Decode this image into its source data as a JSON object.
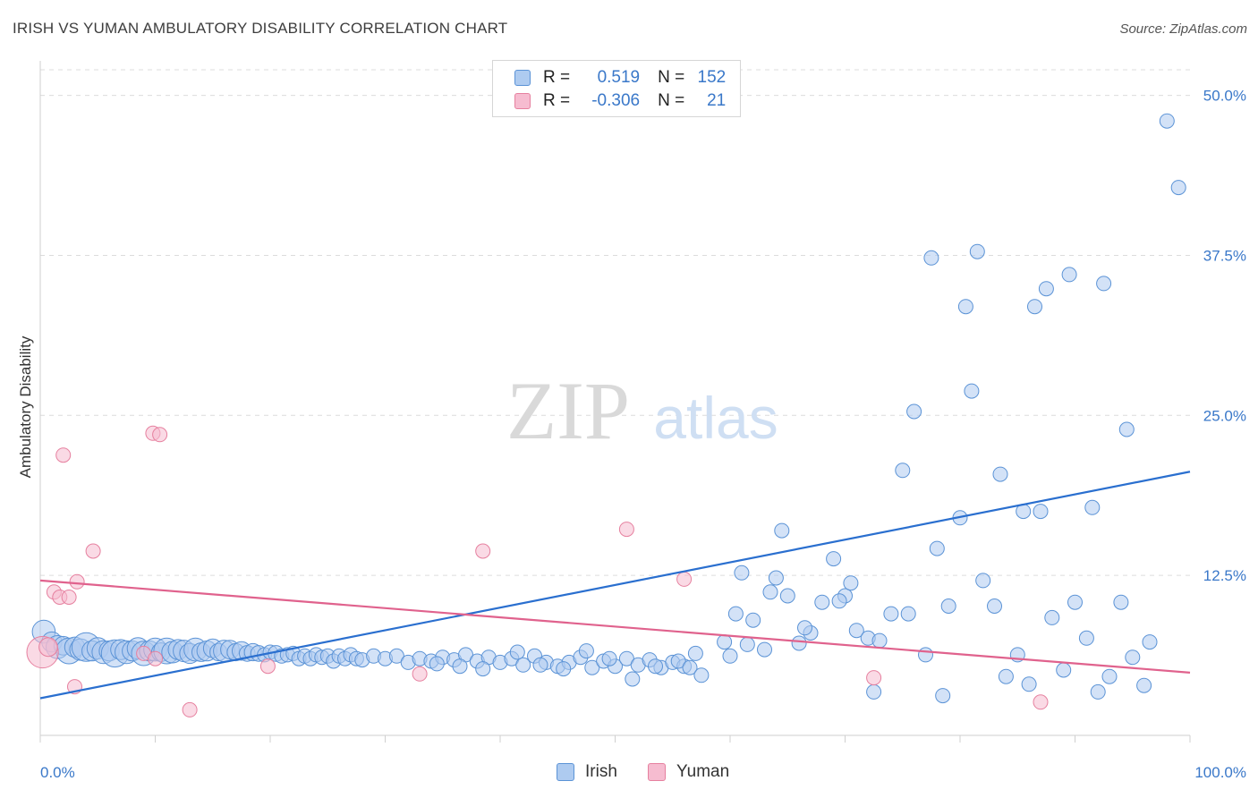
{
  "title": "IRISH VS YUMAN AMBULATORY DISABILITY CORRELATION CHART",
  "source": "Source: ZipAtlas.com",
  "watermark": {
    "zip": "ZIP",
    "atlas": "atlas"
  },
  "legend": {
    "irish": {
      "r_label": "R =",
      "r_value": "0.519",
      "n_label": "N =",
      "n_value": "152"
    },
    "yuman": {
      "r_label": "R =",
      "r_value": "-0.306",
      "n_label": "N =",
      "n_value": "21"
    }
  },
  "bottom_legend": {
    "irish": "Irish",
    "yuman": "Yuman"
  },
  "colors": {
    "irish_fill": "#aecbf0",
    "irish_stroke": "#5b93d6",
    "irish_line": "#2a6fcf",
    "yuman_fill": "#f6bcd0",
    "yuman_stroke": "#e6809f",
    "yuman_line": "#e0628d",
    "axis_label": "#3a78c9",
    "grid": "#dcdcdc"
  },
  "chart_data": {
    "type": "scatter",
    "title": "IRISH VS YUMAN AMBULATORY DISABILITY CORRELATION CHART",
    "xlabel": "",
    "ylabel": "Ambulatory Disability",
    "xlim": [
      0,
      100
    ],
    "ylim": [
      0,
      52
    ],
    "x_tick_labels": [
      "0.0%",
      "100.0%"
    ],
    "y_ticks": [
      12.5,
      25.0,
      37.5,
      50.0
    ],
    "y_tick_labels": [
      "12.5%",
      "25.0%",
      "37.5%",
      "50.0%"
    ],
    "series": [
      {
        "name": "Irish",
        "r": 0.519,
        "n": 152,
        "trend": {
          "x": [
            0,
            100
          ],
          "y": [
            2.9,
            20.6
          ]
        },
        "points": [
          [
            0.3,
            8.1,
            1.6
          ],
          [
            1,
            7.3,
            1.4
          ],
          [
            1.5,
            6.9,
            1.6
          ],
          [
            2,
            7.0,
            1.3
          ],
          [
            2.5,
            6.6,
            1.8
          ],
          [
            3,
            6.9,
            1.4
          ],
          [
            3.5,
            6.7,
            1.5
          ],
          [
            4,
            6.9,
            2.0
          ],
          [
            4.5,
            6.6,
            1.4
          ],
          [
            5,
            6.8,
            1.5
          ],
          [
            5.5,
            6.5,
            1.6
          ],
          [
            6,
            6.6,
            1.4
          ],
          [
            6.5,
            6.4,
            1.9
          ],
          [
            7,
            6.7,
            1.4
          ],
          [
            7.5,
            6.5,
            1.6
          ],
          [
            8,
            6.6,
            1.4
          ],
          [
            8.5,
            6.8,
            1.5
          ],
          [
            9,
            6.4,
            1.7
          ],
          [
            9.5,
            6.6,
            1.4
          ],
          [
            10,
            6.7,
            1.6
          ],
          [
            10.5,
            6.5,
            1.3
          ],
          [
            11,
            6.6,
            1.8
          ],
          [
            11.5,
            6.5,
            1.5
          ],
          [
            12,
            6.7,
            1.4
          ],
          [
            12.5,
            6.6,
            1.5
          ],
          [
            13,
            6.4,
            1.4
          ],
          [
            13.5,
            6.7,
            1.6
          ],
          [
            14,
            6.5,
            1.3
          ],
          [
            14.5,
            6.6,
            1.4
          ],
          [
            15,
            6.8,
            1.3
          ],
          [
            15.5,
            6.5,
            1.2
          ],
          [
            16,
            6.6,
            1.5
          ],
          [
            16.5,
            6.7,
            1.3
          ],
          [
            17,
            6.5,
            1.2
          ],
          [
            17.5,
            6.6,
            1.3
          ],
          [
            18,
            6.4,
            1.1
          ],
          [
            18.5,
            6.5,
            1.2
          ],
          [
            19,
            6.4,
            1.1
          ],
          [
            19.5,
            6.3,
            1.0
          ],
          [
            20,
            6.5,
            1.0
          ],
          [
            20.5,
            6.4,
            1.1
          ],
          [
            21,
            6.2,
            1.0
          ],
          [
            21.5,
            6.3,
            1.0
          ],
          [
            22,
            6.4,
            1.0
          ],
          [
            22.5,
            6.0,
            1.0
          ],
          [
            23,
            6.2,
            1.0
          ],
          [
            23.5,
            6.0,
            1.0
          ],
          [
            24,
            6.3,
            1.0
          ],
          [
            24.5,
            6.1,
            1.0
          ],
          [
            25,
            6.2,
            1.0
          ],
          [
            25.5,
            5.8,
            1.0
          ],
          [
            26,
            6.2,
            1.0
          ],
          [
            26.5,
            6.0,
            1.0
          ],
          [
            27,
            6.3,
            1.0
          ],
          [
            27.5,
            6.0,
            1.0
          ],
          [
            28,
            5.9,
            1.0
          ],
          [
            29,
            6.2,
            1.0
          ],
          [
            30,
            6.0,
            1.0
          ],
          [
            31,
            6.2,
            1.0
          ],
          [
            32,
            5.7,
            1.0
          ],
          [
            33,
            6.0,
            1.0
          ],
          [
            34,
            5.8,
            1.0
          ],
          [
            35,
            6.1,
            1.0
          ],
          [
            36,
            5.9,
            1.0
          ],
          [
            37,
            6.3,
            1.0
          ],
          [
            38,
            5.8,
            1.0
          ],
          [
            39,
            6.1,
            1.0
          ],
          [
            40,
            5.7,
            1.0
          ],
          [
            41,
            6.0,
            1.0
          ],
          [
            42,
            5.5,
            1.0
          ],
          [
            43,
            6.2,
            1.0
          ],
          [
            44,
            5.7,
            1.0
          ],
          [
            45,
            5.4,
            1.0
          ],
          [
            46,
            5.7,
            1.0
          ],
          [
            47,
            6.1,
            1.0
          ],
          [
            48,
            5.3,
            1.0
          ],
          [
            49,
            5.8,
            1.0
          ],
          [
            50,
            5.4,
            1.0
          ],
          [
            51,
            6.0,
            1.0
          ],
          [
            52,
            5.5,
            1.0
          ],
          [
            53,
            5.9,
            1.0
          ],
          [
            54,
            5.3,
            1.0
          ],
          [
            55,
            5.7,
            1.0
          ],
          [
            56,
            5.4,
            1.0
          ],
          [
            57,
            6.4,
            1.0
          ],
          [
            34.5,
            5.6,
            1.0
          ],
          [
            36.5,
            5.4,
            1.0
          ],
          [
            38.5,
            5.2,
            1.0
          ],
          [
            41.5,
            6.5,
            1.0
          ],
          [
            43.5,
            5.5,
            1.0
          ],
          [
            45.5,
            5.2,
            1.0
          ],
          [
            47.5,
            6.6,
            1.0
          ],
          [
            49.5,
            6.0,
            1.0
          ],
          [
            51.5,
            4.4,
            1.0
          ],
          [
            53.5,
            5.4,
            1.0
          ],
          [
            55.5,
            5.8,
            1.0
          ],
          [
            56.5,
            5.3,
            1.0
          ],
          [
            57.5,
            4.7,
            1.0
          ],
          [
            59.5,
            7.3,
            1.0
          ],
          [
            60.5,
            9.5,
            1.0
          ],
          [
            61,
            12.7,
            1.0
          ],
          [
            62,
            9.0,
            1.0
          ],
          [
            63,
            6.7,
            1.0
          ],
          [
            64,
            12.3,
            1.0
          ],
          [
            65,
            10.9,
            1.0
          ],
          [
            66,
            7.2,
            1.0
          ],
          [
            67,
            8.0,
            1.0
          ],
          [
            68,
            10.4,
            1.0
          ],
          [
            69,
            13.8,
            1.0
          ],
          [
            70,
            10.9,
            1.0
          ],
          [
            71,
            8.2,
            1.0
          ],
          [
            72,
            7.6,
            1.0
          ],
          [
            73,
            7.4,
            1.0
          ],
          [
            74,
            9.5,
            1.0
          ],
          [
            75,
            20.7,
            1.0
          ],
          [
            76,
            25.3,
            1.0
          ],
          [
            77,
            6.3,
            1.0
          ],
          [
            78,
            14.6,
            1.0
          ],
          [
            79,
            10.1,
            1.0
          ],
          [
            80,
            17.0,
            1.0
          ],
          [
            81,
            26.9,
            1.0
          ],
          [
            82,
            12.1,
            1.0
          ],
          [
            83,
            10.1,
            1.0
          ],
          [
            84,
            4.6,
            1.0
          ],
          [
            85,
            6.3,
            1.0
          ],
          [
            86,
            4.0,
            1.0
          ],
          [
            87,
            17.5,
            1.0
          ],
          [
            88,
            9.2,
            1.0
          ],
          [
            89,
            5.1,
            1.0
          ],
          [
            90,
            10.4,
            1.0
          ],
          [
            91,
            7.6,
            1.0
          ],
          [
            92,
            3.4,
            1.0
          ],
          [
            93,
            4.6,
            1.0
          ],
          [
            94,
            10.4,
            1.0
          ],
          [
            95,
            6.1,
            1.0
          ],
          [
            96,
            3.9,
            1.0
          ],
          [
            60,
            6.2,
            1.0
          ],
          [
            64.5,
            16.0,
            1.0
          ],
          [
            66.5,
            8.4,
            1.0
          ],
          [
            70.5,
            11.9,
            1.0
          ],
          [
            72.5,
            3.4,
            1.0
          ],
          [
            75.5,
            9.5,
            1.0
          ],
          [
            78.5,
            3.1,
            1.0
          ],
          [
            61.5,
            7.1,
            1.0
          ],
          [
            63.5,
            11.2,
            1.0
          ],
          [
            69.5,
            10.5,
            1.0
          ],
          [
            77.5,
            37.3,
            1.0
          ],
          [
            80.5,
            33.5,
            1.0
          ],
          [
            81.5,
            37.8,
            1.0
          ],
          [
            83.5,
            20.4,
            1.0
          ],
          [
            85.5,
            17.5,
            1.0
          ],
          [
            87.5,
            34.9,
            1.0
          ],
          [
            89.5,
            36.0,
            1.0
          ],
          [
            92.5,
            35.3,
            1.0
          ],
          [
            94.5,
            23.9,
            1.0
          ],
          [
            96.5,
            7.3,
            1.0
          ],
          [
            98,
            48.0,
            1.0
          ],
          [
            99,
            42.8,
            1.0
          ],
          [
            86.5,
            33.5,
            1.0
          ],
          [
            91.5,
            17.8,
            1.0
          ]
        ]
      },
      {
        "name": "Yuman",
        "r": -0.306,
        "n": 21,
        "trend": {
          "x": [
            0,
            100
          ],
          "y": [
            12.1,
            4.9
          ]
        },
        "points": [
          [
            0.2,
            6.5,
            2.2
          ],
          [
            0.7,
            6.9,
            1.3
          ],
          [
            1.2,
            11.2,
            1.0
          ],
          [
            1.7,
            10.8,
            1.0
          ],
          [
            2.0,
            21.9,
            1.0
          ],
          [
            2.5,
            10.8,
            1.0
          ],
          [
            3.0,
            3.8,
            1.0
          ],
          [
            3.2,
            12.0,
            1.0
          ],
          [
            4.6,
            14.4,
            1.0
          ],
          [
            9.0,
            6.4,
            1.0
          ],
          [
            10.0,
            6.0,
            1.0
          ],
          [
            9.8,
            23.6,
            1.0
          ],
          [
            10.4,
            23.5,
            1.0
          ],
          [
            13.0,
            2.0,
            1.0
          ],
          [
            19.8,
            5.4,
            1.0
          ],
          [
            33.0,
            4.8,
            1.0
          ],
          [
            38.5,
            14.4,
            1.0
          ],
          [
            51.0,
            16.1,
            1.0
          ],
          [
            56.0,
            12.2,
            1.0
          ],
          [
            72.5,
            4.5,
            1.0
          ],
          [
            87.0,
            2.6,
            1.0
          ]
        ]
      }
    ]
  }
}
